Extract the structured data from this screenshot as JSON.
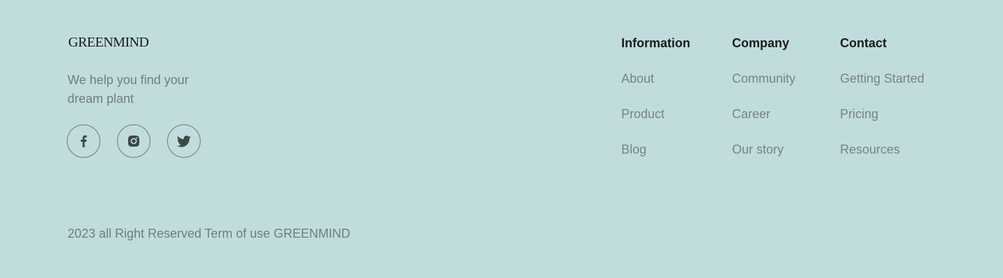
{
  "brand": {
    "logo_text": "GREENMIND",
    "tagline": "We help you find your dream plant"
  },
  "socials": [
    {
      "name": "facebook-icon"
    },
    {
      "name": "instagram-icon"
    },
    {
      "name": "twitter-icon"
    }
  ],
  "columns": [
    {
      "title": "Information",
      "links": [
        "About",
        "Product",
        "Blog"
      ]
    },
    {
      "title": "Company",
      "links": [
        "Community",
        "Career",
        "Our story"
      ]
    },
    {
      "title": "Contact",
      "links": [
        "Getting Started",
        "Pricing",
        "Resources"
      ]
    }
  ],
  "footer": {
    "copyright": "2023 all Right Reserved Term of use GREENMIND"
  },
  "colors": {
    "background": "#c1dcdc",
    "heading": "#1b1b1b",
    "muted_text": "#6e7e7b",
    "link_text": "#76838a"
  }
}
